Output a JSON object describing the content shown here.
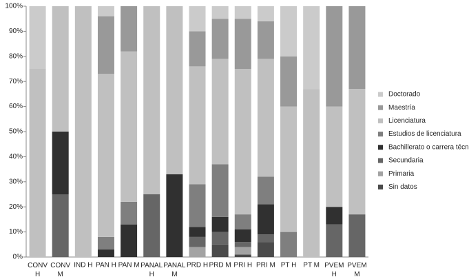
{
  "chart_data": {
    "type": "stacked_bar",
    "categories": [
      "CONV H",
      "CONV M",
      "IND H",
      "PAN H",
      "PAN M",
      "PANAL H",
      "PANAL M",
      "PRD H",
      "PRD M",
      "PRI H",
      "PRI M",
      "PT H",
      "PT M",
      "PVEM H",
      "PVEM M"
    ],
    "series": [
      {
        "name": "Sin datos",
        "color": "#4a4a4a",
        "values": [
          0,
          0,
          0,
          0,
          0,
          0,
          0,
          0,
          5,
          1,
          6,
          0,
          0,
          0,
          0
        ]
      },
      {
        "name": "Primaria",
        "color": "#a3a3a3",
        "values": [
          0,
          0,
          0,
          0,
          0,
          0,
          0,
          4,
          0,
          3,
          0,
          0,
          0,
          0,
          0
        ]
      },
      {
        "name": "Secundaria",
        "color": "#666666",
        "values": [
          0,
          25,
          0,
          0,
          0,
          25,
          0,
          4,
          5,
          2,
          3,
          0,
          0,
          13,
          17
        ]
      },
      {
        "name": "Bachillerato o carrera técnica",
        "color": "#303030",
        "values": [
          0,
          25,
          0,
          3,
          13,
          0,
          33,
          4,
          6,
          5,
          12,
          0,
          0,
          7,
          0
        ]
      },
      {
        "name": "Estudios de licenciatura",
        "color": "#7f7f7f",
        "values": [
          0,
          0,
          0,
          5,
          9,
          0,
          0,
          17,
          21,
          6,
          11,
          10,
          0,
          0,
          0
        ]
      },
      {
        "name": "Licenciatura",
        "color": "#c0c0c0",
        "values": [
          75,
          50,
          100,
          65,
          60,
          75,
          67,
          47,
          42,
          58,
          47,
          50,
          67,
          40,
          50
        ]
      },
      {
        "name": "Maestría",
        "color": "#999999",
        "values": [
          0,
          0,
          0,
          23,
          18,
          0,
          0,
          14,
          16,
          20,
          15,
          20,
          0,
          40,
          33
        ]
      },
      {
        "name": "Doctorado",
        "color": "#cbcbcb",
        "values": [
          25,
          0,
          0,
          4,
          0,
          0,
          0,
          10,
          5,
          5,
          6,
          20,
          33,
          0,
          0
        ]
      }
    ],
    "ylim": [
      0,
      100
    ],
    "yticks": [
      {
        "value": 0,
        "label": "0%"
      },
      {
        "value": 10,
        "label": "10%"
      },
      {
        "value": 20,
        "label": "20%"
      },
      {
        "value": 30,
        "label": "30%"
      },
      {
        "value": 40,
        "label": "40%"
      },
      {
        "value": 50,
        "label": "50%"
      },
      {
        "value": 60,
        "label": "60%"
      },
      {
        "value": 70,
        "label": "70%"
      },
      {
        "value": 80,
        "label": "80%"
      },
      {
        "value": 90,
        "label": "90%"
      },
      {
        "value": 100,
        "label": "100%"
      }
    ],
    "legend": "right"
  }
}
